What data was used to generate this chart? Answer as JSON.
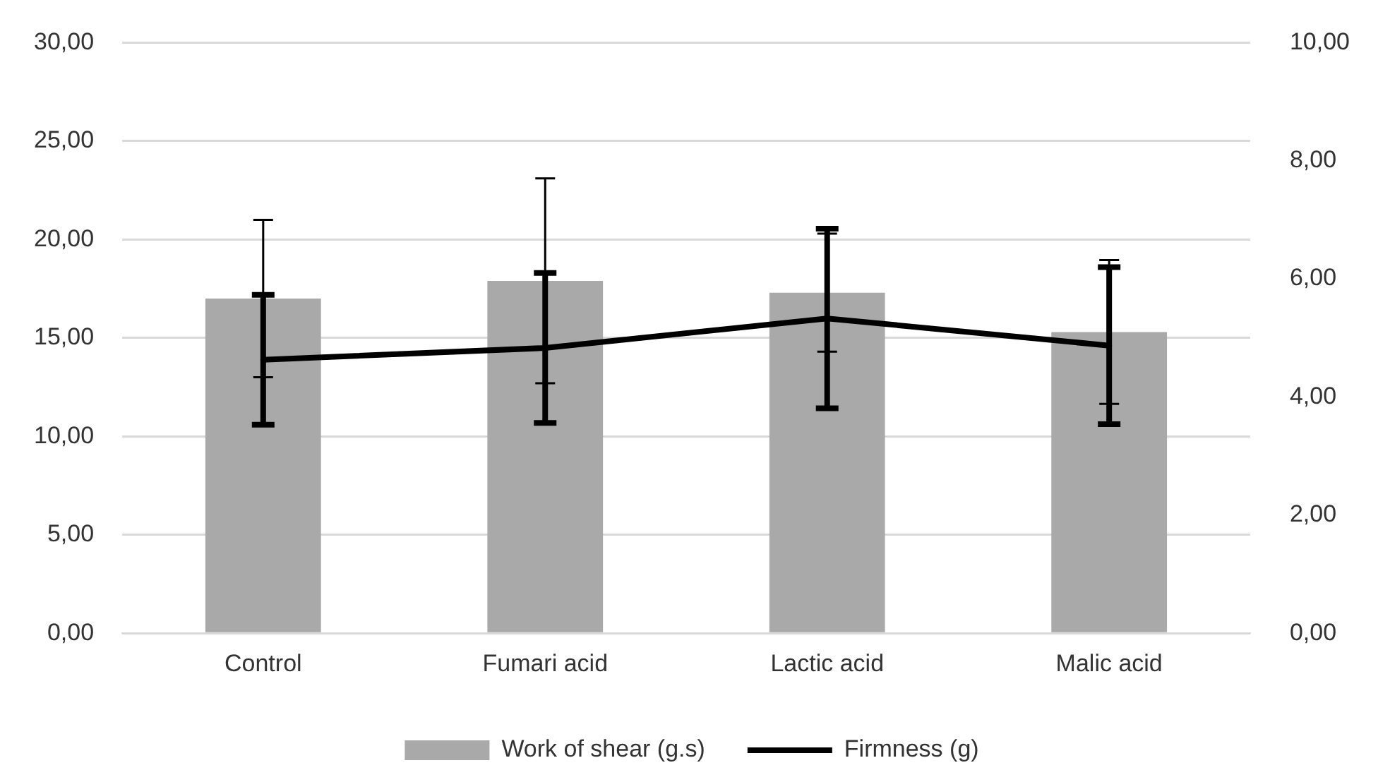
{
  "chart_data": {
    "type": "bar",
    "categories": [
      "Control",
      "Fumari acid",
      "Lactic acid",
      "Malic acid"
    ],
    "series": [
      {
        "name": "Work of shear (g.s)",
        "color": "#a9a9a9",
        "values": [
          17.0,
          17.9,
          17.3,
          15.3
        ],
        "errors": [
          4.0,
          5.2,
          3.0,
          3.65
        ]
      },
      {
        "name": "Firmness (g)",
        "type": "line",
        "axis": "y2",
        "color": "#000000",
        "values": [
          4.63,
          4.83,
          5.33,
          4.87
        ],
        "errors": [
          1.1,
          1.27,
          1.52,
          1.33
        ],
        "marker": "none",
        "line_style": "solid"
      }
    ],
    "ylim": [
      0,
      30
    ],
    "yticks": [
      {
        "value": 0,
        "label": "0,00"
      },
      {
        "value": 5,
        "label": "5,00"
      },
      {
        "value": 10,
        "label": "10,00"
      },
      {
        "value": 15,
        "label": "15,00"
      },
      {
        "value": 20,
        "label": "20,00"
      },
      {
        "value": 25,
        "label": "25,00"
      },
      {
        "value": 30,
        "label": "30,00"
      }
    ],
    "y2lim": [
      0,
      10
    ],
    "y2ticks": [
      {
        "value": 0,
        "label": "0,00"
      },
      {
        "value": 2,
        "label": "2,00"
      },
      {
        "value": 4,
        "label": "4,00"
      },
      {
        "value": 6,
        "label": "6,00"
      },
      {
        "value": 8,
        "label": "8,00"
      },
      {
        "value": 10,
        "label": "10,00"
      }
    ],
    "grid": "y",
    "legend": "bottom"
  }
}
